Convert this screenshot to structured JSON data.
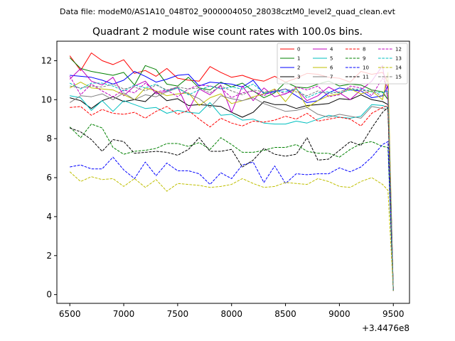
{
  "chart_data": {
    "type": "line",
    "header": "Data file: modeM0/AS1A10_048T02_9000004050_28038cztM0_level2_quad_clean.evt",
    "title": "Quadrant 2 module wise count rates with 100.0s bins.",
    "xlabel": "",
    "ylabel": "",
    "x_offset_label": "+3.4476e8",
    "xlim": [
      6380,
      9650
    ],
    "ylim": [
      -0.45,
      13.0
    ],
    "x_ticks": [
      6500,
      7000,
      7500,
      8000,
      8500,
      9000,
      9500
    ],
    "x_tick_labels": [
      "6500",
      "7000",
      "7500",
      "8000",
      "8500",
      "9000",
      "9500"
    ],
    "y_ticks": [
      0,
      2,
      4,
      6,
      8,
      10,
      12
    ],
    "y_tick_labels": [
      "0",
      "2",
      "4",
      "6",
      "8",
      "10",
      "12"
    ],
    "grid": false,
    "legend_position": "top-right",
    "x": [
      6500,
      6600,
      6700,
      6800,
      6900,
      7000,
      7100,
      7200,
      7300,
      7400,
      7500,
      7600,
      7700,
      7800,
      7900,
      8000,
      8100,
      8200,
      8300,
      8400,
      8500,
      8600,
      8700,
      8800,
      8900,
      9000,
      9100,
      9200,
      9300,
      9400,
      9450,
      9500
    ],
    "series": [
      {
        "name": "0",
        "color": "#ff0000",
        "dash": "solid",
        "values": [
          12.25,
          11.5,
          12.4,
          12.0,
          11.8,
          12.05,
          11.35,
          11.5,
          11.2,
          11.6,
          11.1,
          11.0,
          10.95,
          11.7,
          11.4,
          11.15,
          11.25,
          11.05,
          10.95,
          11.2,
          10.9,
          11.1,
          11.35,
          11.3,
          11.15,
          11.1,
          10.9,
          11.45,
          11.3,
          11.4,
          10.9,
          0.2
        ]
      },
      {
        "name": "1",
        "color": "#008000",
        "dash": "solid",
        "values": [
          12.15,
          11.6,
          11.45,
          11.35,
          11.25,
          11.4,
          10.75,
          11.75,
          11.55,
          10.8,
          10.7,
          11.15,
          10.6,
          10.5,
          10.9,
          10.65,
          10.85,
          10.45,
          10.1,
          10.35,
          10.9,
          10.65,
          10.6,
          10.8,
          10.95,
          10.7,
          10.8,
          10.75,
          10.5,
          10.4,
          10.0,
          0.25
        ]
      },
      {
        "name": "2",
        "color": "#0000ff",
        "dash": "solid",
        "values": [
          11.25,
          11.2,
          11.15,
          11.0,
          10.8,
          11.0,
          11.45,
          11.2,
          10.9,
          11.05,
          11.25,
          11.3,
          10.7,
          10.9,
          10.85,
          10.8,
          10.65,
          11.0,
          10.3,
          10.4,
          10.55,
          10.2,
          9.85,
          9.95,
          10.35,
          10.6,
          10.5,
          10.45,
          10.1,
          10.2,
          10.7,
          0.2
        ]
      },
      {
        "name": "3",
        "color": "#000000",
        "dash": "solid",
        "values": [
          10.1,
          9.95,
          9.55,
          9.95,
          10.15,
          9.9,
          10.0,
          9.9,
          10.4,
          9.95,
          10.05,
          9.7,
          9.75,
          9.7,
          9.65,
          9.35,
          9.1,
          9.35,
          9.9,
          9.75,
          9.75,
          9.55,
          9.7,
          9.75,
          9.8,
          10.05,
          10.0,
          10.25,
          10.0,
          9.9,
          9.75,
          0.2
        ]
      },
      {
        "name": "4",
        "color": "#bf00bf",
        "dash": "solid",
        "values": [
          11.05,
          11.6,
          10.95,
          10.75,
          11.15,
          10.2,
          10.7,
          10.95,
          10.3,
          10.45,
          10.65,
          9.45,
          10.55,
          10.25,
          10.75,
          9.35,
          10.7,
          9.95,
          10.6,
          10.15,
          10.3,
          10.55,
          9.95,
          10.2,
          10.65,
          10.35,
          10.0,
          10.5,
          10.95,
          11.75,
          9.95,
          0.2
        ]
      },
      {
        "name": "5",
        "color": "#00bfbf",
        "dash": "solid",
        "values": [
          10.2,
          10.1,
          9.45,
          9.95,
          9.4,
          9.95,
          9.75,
          9.55,
          9.6,
          9.3,
          9.45,
          9.35,
          9.3,
          9.85,
          9.2,
          9.25,
          8.95,
          9.0,
          8.8,
          8.75,
          8.75,
          8.9,
          8.8,
          9.0,
          9.2,
          9.1,
          9.05,
          9.15,
          9.75,
          9.7,
          9.6,
          0.2
        ]
      },
      {
        "name": "6",
        "color": "#bfbf00",
        "dash": "solid",
        "values": [
          10.6,
          10.9,
          10.6,
          10.55,
          10.5,
          10.25,
          10.0,
          10.6,
          10.45,
          10.2,
          10.3,
          10.35,
          9.7,
          10.1,
          10.3,
          9.8,
          9.95,
          10.15,
          10.3,
          10.55,
          9.9,
          10.6,
          9.6,
          9.95,
          10.2,
          10.3,
          10.55,
          10.3,
          10.45,
          10.0,
          11.4,
          0.2
        ]
      },
      {
        "name": "7",
        "color": "#808080",
        "dash": "solid",
        "values": [
          9.85,
          10.2,
          10.15,
          10.3,
          10.0,
          10.35,
          10.0,
          10.25,
          10.15,
          10.4,
          10.6,
          10.3,
          10.05,
          9.6,
          10.2,
          10.05,
          9.95,
          10.1,
          9.8,
          9.6,
          9.4,
          9.45,
          9.6,
          9.25,
          9.1,
          9.25,
          9.15,
          9.05,
          9.65,
          9.55,
          9.5,
          0.2
        ]
      },
      {
        "name": "8",
        "color": "#ff0000",
        "dash": "dashed",
        "values": [
          9.6,
          9.65,
          9.2,
          9.5,
          9.3,
          9.25,
          9.35,
          9.05,
          9.4,
          9.65,
          9.25,
          9.45,
          9.0,
          8.6,
          9.05,
          8.8,
          8.65,
          8.9,
          8.85,
          8.95,
          9.15,
          9.0,
          9.3,
          8.9,
          9.0,
          9.1,
          9.0,
          8.65,
          9.3,
          9.6,
          9.7,
          0.2
        ]
      },
      {
        "name": "9",
        "color": "#008000",
        "dash": "dashed",
        "values": [
          8.6,
          8.05,
          8.75,
          8.55,
          7.55,
          7.2,
          7.35,
          7.4,
          7.5,
          7.75,
          7.75,
          7.6,
          7.8,
          7.45,
          8.05,
          7.7,
          7.3,
          7.3,
          7.4,
          7.55,
          7.55,
          7.7,
          7.35,
          7.25,
          7.25,
          7.05,
          7.45,
          7.75,
          7.85,
          7.6,
          7.55,
          0.2
        ]
      },
      {
        "name": "10",
        "color": "#0000ff",
        "dash": "dashed",
        "values": [
          6.55,
          6.65,
          6.45,
          6.45,
          7.05,
          6.4,
          5.95,
          6.8,
          6.1,
          6.75,
          6.35,
          6.35,
          6.2,
          5.65,
          6.25,
          5.95,
          6.65,
          6.8,
          5.75,
          6.6,
          5.7,
          6.2,
          6.15,
          6.2,
          6.2,
          6.5,
          6.3,
          6.55,
          7.05,
          7.7,
          7.85,
          0.2
        ]
      },
      {
        "name": "11",
        "color": "#000000",
        "dash": "dashed",
        "values": [
          8.55,
          8.35,
          7.95,
          7.35,
          7.95,
          7.85,
          7.25,
          7.3,
          7.35,
          7.3,
          7.15,
          7.45,
          8.05,
          7.35,
          7.35,
          7.45,
          6.55,
          6.9,
          7.5,
          7.2,
          7.1,
          7.2,
          8.05,
          6.9,
          6.95,
          7.4,
          7.85,
          7.65,
          8.55,
          9.35,
          9.6,
          0.2
        ]
      },
      {
        "name": "12",
        "color": "#bf00bf",
        "dash": "dashed",
        "values": [
          11.2,
          10.25,
          10.8,
          10.45,
          10.15,
          10.5,
          10.35,
          10.85,
          10.4,
          10.5,
          10.15,
          10.55,
          10.75,
          10.7,
          10.6,
          10.1,
          10.35,
          10.45,
          10.2,
          10.5,
          10.3,
          10.65,
          10.5,
          10.7,
          10.15,
          10.25,
          10.7,
          10.6,
          10.2,
          11.1,
          10.6,
          0.2
        ]
      },
      {
        "name": "13",
        "color": "#00bfbf",
        "dash": "dashed",
        "values": [
          10.85,
          10.55,
          10.85,
          10.85,
          10.7,
          10.45,
          10.75,
          10.6,
          10.8,
          10.45,
          10.6,
          10.25,
          10.5,
          10.7,
          10.55,
          10.65,
          10.55,
          10.8,
          10.35,
          10.45,
          10.4,
          10.55,
          10.1,
          10.35,
          10.4,
          10.35,
          10.5,
          10.55,
          10.4,
          10.35,
          10.45,
          0.2
        ]
      },
      {
        "name": "14",
        "color": "#bfbf00",
        "dash": "dashed",
        "values": [
          6.3,
          5.8,
          6.05,
          5.9,
          5.95,
          5.55,
          5.95,
          5.5,
          5.9,
          5.3,
          5.7,
          5.65,
          5.6,
          5.5,
          5.55,
          5.65,
          5.95,
          5.7,
          5.5,
          5.55,
          5.75,
          5.7,
          5.65,
          5.95,
          5.8,
          5.55,
          5.5,
          5.8,
          6.0,
          5.65,
          5.35,
          0.2
        ]
      },
      {
        "name": "15",
        "color": "#808080",
        "dash": "dashed",
        "values": [
          10.7,
          10.6,
          10.7,
          10.65,
          10.8,
          10.55,
          10.65,
          10.45,
          10.75,
          10.5,
          10.65,
          10.55,
          10.6,
          10.35,
          10.7,
          10.45,
          10.25,
          10.5,
          10.4,
          10.45,
          10.55,
          10.4,
          10.2,
          10.45,
          10.3,
          10.4,
          10.6,
          10.45,
          10.5,
          10.15,
          10.35,
          0.2
        ]
      }
    ]
  }
}
